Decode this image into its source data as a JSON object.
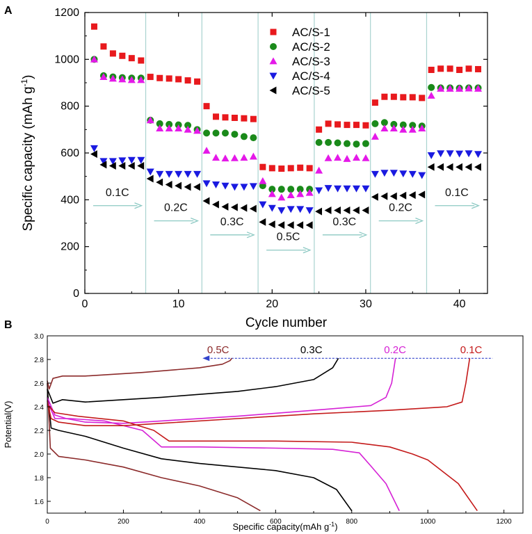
{
  "chart_data": [
    {
      "panel": "A",
      "type": "scatter",
      "xlabel": "Cycle number",
      "ylabel": "Specific capacity (mAh g",
      "ylabel_sup": "-1",
      "ylabel_tail": ")",
      "xlim": [
        0,
        43
      ],
      "ylim": [
        0,
        1200
      ],
      "xticks": [
        0,
        10,
        20,
        30,
        40
      ],
      "yticks": [
        0,
        200,
        400,
        600,
        800,
        1000,
        1200
      ],
      "grid": false,
      "legend_position": "top-center",
      "rate_boundaries": [
        6.5,
        12.5,
        18.5,
        24.5,
        30.5,
        36.5
      ],
      "rates": [
        {
          "label": "0.1C",
          "x_from": 0,
          "x_to": 6.5,
          "y": 375
        },
        {
          "label": "0.2C",
          "x_from": 6.5,
          "x_to": 12.5,
          "y": 310
        },
        {
          "label": "0.3C",
          "x_from": 12.5,
          "x_to": 18.5,
          "y": 250
        },
        {
          "label": "0.5C",
          "x_from": 18.5,
          "x_to": 24.5,
          "y": 185
        },
        {
          "label": "0.3C",
          "x_from": 24.5,
          "x_to": 30.5,
          "y": 250
        },
        {
          "label": "0.2C",
          "x_from": 30.5,
          "x_to": 36.5,
          "y": 310
        },
        {
          "label": "0.1C",
          "x_from": 36.5,
          "x_to": 42.5,
          "y": 375
        }
      ],
      "series": [
        {
          "name": "AC/S-1",
          "marker": "square",
          "color": "#e8191d",
          "values": [
            1140,
            1055,
            1025,
            1015,
            1005,
            995,
            925,
            920,
            918,
            915,
            910,
            905,
            800,
            755,
            752,
            750,
            748,
            745,
            540,
            535,
            533,
            535,
            537,
            535,
            700,
            725,
            722,
            720,
            720,
            718,
            815,
            840,
            840,
            838,
            838,
            835,
            955,
            960,
            960,
            955,
            960,
            958
          ]
        },
        {
          "name": "AC/S-2",
          "marker": "circle",
          "color": "#1a8a1a",
          "values": [
            1000,
            930,
            925,
            922,
            920,
            920,
            740,
            725,
            722,
            720,
            718,
            700,
            685,
            685,
            685,
            680,
            670,
            665,
            460,
            445,
            445,
            445,
            445,
            445,
            645,
            645,
            643,
            640,
            638,
            640,
            725,
            730,
            722,
            720,
            718,
            715,
            880,
            878,
            878,
            877,
            878,
            878
          ]
        },
        {
          "name": "AC/S-3",
          "marker": "triangle-up",
          "color": "#e419e8",
          "values": [
            1000,
            925,
            918,
            915,
            912,
            912,
            740,
            705,
            705,
            705,
            700,
            695,
            610,
            580,
            577,
            578,
            580,
            585,
            480,
            425,
            410,
            420,
            425,
            430,
            525,
            578,
            580,
            575,
            580,
            578,
            670,
            705,
            705,
            700,
            700,
            705,
            845,
            875,
            875,
            875,
            876,
            875
          ]
        },
        {
          "name": "AC/S-4",
          "marker": "triangle-down",
          "color": "#1a1ae0",
          "values": [
            620,
            565,
            565,
            568,
            570,
            570,
            520,
            510,
            510,
            510,
            510,
            510,
            470,
            465,
            460,
            455,
            455,
            458,
            380,
            365,
            355,
            360,
            360,
            355,
            440,
            450,
            448,
            448,
            448,
            448,
            510,
            515,
            515,
            512,
            510,
            505,
            590,
            598,
            598,
            597,
            598,
            595
          ]
        },
        {
          "name": "AC/S-5",
          "marker": "triangle-left",
          "color": "#000000",
          "values": [
            595,
            550,
            545,
            545,
            545,
            545,
            490,
            475,
            465,
            460,
            455,
            455,
            395,
            380,
            370,
            368,
            365,
            362,
            305,
            295,
            292,
            292,
            292,
            292,
            350,
            355,
            355,
            355,
            355,
            355,
            412,
            415,
            415,
            418,
            420,
            422,
            540,
            540,
            540,
            540,
            540,
            540
          ]
        }
      ]
    },
    {
      "panel": "B",
      "type": "line",
      "xlabel": "Specific capacity(mAh g",
      "xlabel_sup": "-1",
      "xlabel_tail": ")",
      "ylabel": "Potential(V)",
      "xlim": [
        0,
        1250
      ],
      "ylim": [
        1.5,
        3.0
      ],
      "xticks": [
        0,
        200,
        400,
        600,
        800,
        1000,
        1200
      ],
      "yticks": [
        1.6,
        1.8,
        2.0,
        2.2,
        2.4,
        2.6,
        2.8,
        3.0
      ],
      "ytick_labels": [
        "1.6",
        "1.8",
        "2.0",
        "2.2",
        "2.4",
        "2.6",
        "2.8",
        "3.0"
      ],
      "reference_line_y": 2.81,
      "series": [
        {
          "name": "0.5C",
          "color": "#8b2a2a",
          "charge": [
            [
              0,
              2.62
            ],
            [
              5,
              2.55
            ],
            [
              15,
              2.64
            ],
            [
              40,
              2.66
            ],
            [
              100,
              2.66
            ],
            [
              250,
              2.69
            ],
            [
              400,
              2.73
            ],
            [
              460,
              2.76
            ],
            [
              480,
              2.79
            ],
            [
              485,
              2.81
            ]
          ],
          "discharge": [
            [
              0,
              2.6
            ],
            [
              8,
              2.05
            ],
            [
              30,
              1.98
            ],
            [
              100,
              1.95
            ],
            [
              200,
              1.89
            ],
            [
              300,
              1.8
            ],
            [
              400,
              1.73
            ],
            [
              500,
              1.63
            ],
            [
              560,
              1.52
            ]
          ]
        },
        {
          "name": "0.3C",
          "color": "#000000",
          "charge": [
            [
              0,
              2.55
            ],
            [
              15,
              2.43
            ],
            [
              40,
              2.46
            ],
            [
              100,
              2.44
            ],
            [
              300,
              2.48
            ],
            [
              500,
              2.53
            ],
            [
              600,
              2.57
            ],
            [
              700,
              2.63
            ],
            [
              750,
              2.73
            ],
            [
              765,
              2.81
            ]
          ],
          "discharge": [
            [
              0,
              2.55
            ],
            [
              10,
              2.22
            ],
            [
              30,
              2.2
            ],
            [
              100,
              2.15
            ],
            [
              200,
              2.05
            ],
            [
              300,
              1.96
            ],
            [
              400,
              1.92
            ],
            [
              600,
              1.86
            ],
            [
              700,
              1.8
            ],
            [
              760,
              1.7
            ],
            [
              800,
              1.52
            ]
          ]
        },
        {
          "name": "0.2C",
          "color": "#d521d5",
          "charge": [
            [
              0,
              2.48
            ],
            [
              20,
              2.33
            ],
            [
              50,
              2.3
            ],
            [
              100,
              2.27
            ],
            [
              200,
              2.26
            ],
            [
              300,
              2.28
            ],
            [
              500,
              2.32
            ],
            [
              700,
              2.37
            ],
            [
              850,
              2.41
            ],
            [
              890,
              2.48
            ],
            [
              905,
              2.6
            ],
            [
              915,
              2.81
            ]
          ],
          "discharge": [
            [
              0,
              2.45
            ],
            [
              20,
              2.3
            ],
            [
              60,
              2.3
            ],
            [
              150,
              2.28
            ],
            [
              250,
              2.2
            ],
            [
              300,
              2.06
            ],
            [
              400,
              2.06
            ],
            [
              600,
              2.05
            ],
            [
              750,
              2.04
            ],
            [
              820,
              2.01
            ],
            [
              850,
              1.9
            ],
            [
              890,
              1.75
            ],
            [
              925,
              1.52
            ]
          ]
        },
        {
          "name": "0.1C",
          "color": "#c41a1a",
          "charge": [
            [
              0,
              2.45
            ],
            [
              10,
              2.3
            ],
            [
              30,
              2.27
            ],
            [
              100,
              2.24
            ],
            [
              200,
              2.24
            ],
            [
              300,
              2.26
            ],
            [
              500,
              2.3
            ],
            [
              700,
              2.34
            ],
            [
              900,
              2.37
            ],
            [
              1050,
              2.4
            ],
            [
              1090,
              2.44
            ],
            [
              1100,
              2.6
            ],
            [
              1110,
              2.81
            ]
          ],
          "discharge": [
            [
              0,
              2.42
            ],
            [
              20,
              2.35
            ],
            [
              80,
              2.32
            ],
            [
              200,
              2.28
            ],
            [
              280,
              2.2
            ],
            [
              320,
              2.11
            ],
            [
              400,
              2.11
            ],
            [
              600,
              2.11
            ],
            [
              800,
              2.1
            ],
            [
              900,
              2.06
            ],
            [
              960,
              2.0
            ],
            [
              1000,
              1.95
            ],
            [
              1040,
              1.85
            ],
            [
              1080,
              1.75
            ],
            [
              1130,
              1.52
            ]
          ]
        }
      ],
      "curve_labels": [
        {
          "text": "0.5C",
          "x": 420,
          "y": 2.84
        },
        {
          "text": "0.3C",
          "x": 665,
          "y": 2.84
        },
        {
          "text": "0.2C",
          "x": 885,
          "y": 2.84
        },
        {
          "text": "0.1C",
          "x": 1085,
          "y": 2.84
        }
      ]
    }
  ]
}
